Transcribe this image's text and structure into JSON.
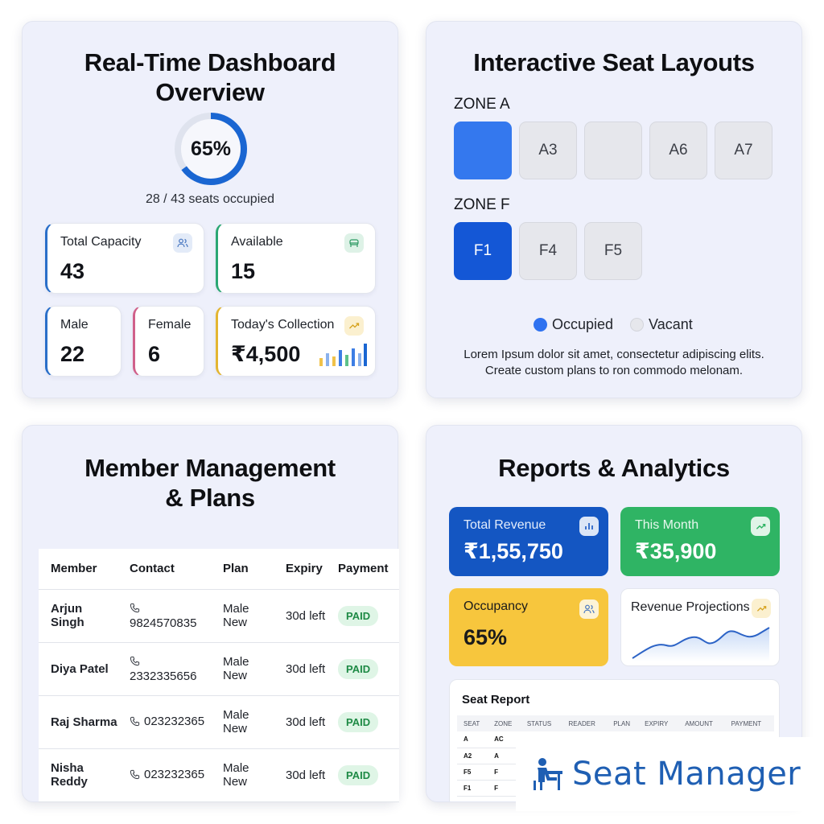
{
  "dashboard": {
    "title_line1": "Real-Time Dashboard",
    "title_line2": "Overview",
    "occupancy_percent": 65,
    "occupancy_label": "65%",
    "seats_text": "28 / 43 seats occupied",
    "cards": {
      "total_capacity": {
        "label": "Total Capacity",
        "value": "43"
      },
      "available": {
        "label": "Available",
        "value": "15"
      },
      "male": {
        "label": "Male",
        "value": "22"
      },
      "female": {
        "label": "Female",
        "value": "6"
      },
      "collection": {
        "label": "Today's Collection",
        "value": "₹4,500"
      }
    },
    "colors": {
      "ring": "#1a66d2",
      "capacity": "#2a6fc9",
      "available": "#2ba773",
      "female": "#d0608a",
      "collection": "#e3b531"
    }
  },
  "seats": {
    "title": "Interactive Seat Layouts",
    "zone_a": {
      "label": "ZONE A",
      "seats": [
        "",
        "A3",
        "",
        "A6",
        "A7"
      ]
    },
    "zone_f": {
      "label": "ZONE F",
      "seats": [
        "F1",
        "F4",
        "F5"
      ]
    },
    "legend": {
      "occupied": "Occupied",
      "vacant": "Vacant"
    },
    "description_line1": "Lorem Ipsum dolor sit amet, consectetur adipiscing elits.",
    "description_line2": "Create custom plans to ron commodo melonam.",
    "colors": {
      "occupied": "#2f72f0",
      "occupied_dark": "#1457d6",
      "vacant": "#e6e7ec"
    }
  },
  "members": {
    "title_line1": "Member Management",
    "title_line2": "& Plans",
    "columns": [
      "Member",
      "Contact",
      "Plan",
      "Expiry",
      "Payment"
    ],
    "rows": [
      {
        "member": "Arjun Singh",
        "contact": "9824570835",
        "plan": "Male New",
        "expiry": "30d left",
        "payment": "PAID"
      },
      {
        "member": "Diya Patel",
        "contact": "2332335656",
        "plan": "Male New",
        "expiry": "30d left",
        "payment": "PAID"
      },
      {
        "member": "Raj Sharma",
        "contact": "023232365",
        "plan": "Male New",
        "expiry": "30d left",
        "payment": "PAID"
      },
      {
        "member": "Nisha Reddy",
        "contact": "023232365",
        "plan": "Male New",
        "expiry": "30d left",
        "payment": "PAID"
      }
    ]
  },
  "reports": {
    "title": "Reports & Analytics",
    "total_revenue": {
      "label": "Total Revenue",
      "value": "₹1,55,750",
      "color": "#1456c2"
    },
    "this_month": {
      "label": "This Month",
      "value": "₹35,900",
      "color": "#2fb464"
    },
    "occupancy": {
      "label": "Occupancy",
      "value": "65%",
      "color": "#f7c63d"
    },
    "projections": {
      "label": "Revenue Projections"
    },
    "seat_report": {
      "title": "Seat Report",
      "columns": [
        "SEAT",
        "ZONE",
        "STATUS",
        "READER",
        "PLAN",
        "EXPIRY",
        "AMOUNT",
        "PAYMENT"
      ],
      "rows": [
        [
          "A",
          "AC",
          "",
          "",
          "",
          "",
          "",
          ""
        ],
        [
          "A2",
          "A",
          "",
          "",
          "",
          "",
          "",
          ""
        ],
        [
          "F5",
          "F",
          "",
          "",
          "",
          "",
          "",
          ""
        ],
        [
          "F1",
          "F",
          "",
          "",
          "",
          "",
          "",
          ""
        ]
      ]
    }
  },
  "brand": {
    "name": "Seat Manager",
    "color": "#1f5fb3"
  }
}
